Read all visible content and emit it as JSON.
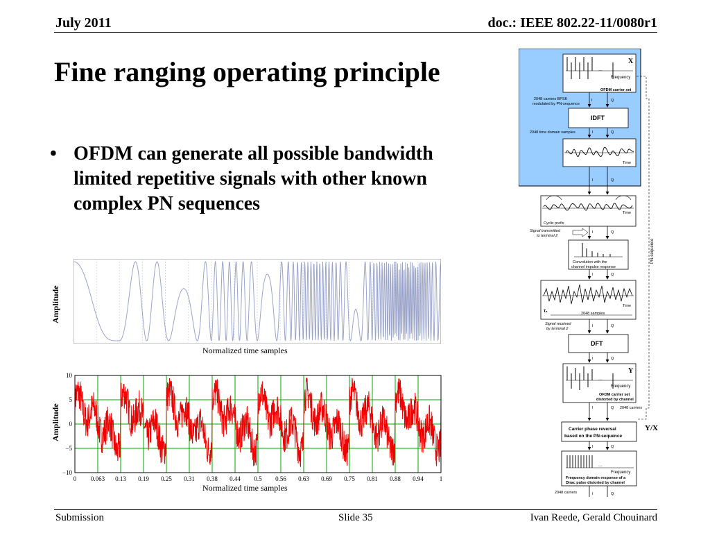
{
  "header": {
    "date": "July 2011",
    "doc": "doc.: IEEE 802.22-11/0080r1"
  },
  "title": "Fine ranging operating principle",
  "bullet": {
    "symbol": "•",
    "text": "OFDM can generate all possible bandwidth limited repetitive signals with other known complex PN sequences"
  },
  "plot1": {
    "ylabel": "Amplitude",
    "xlabel": "Normalized time samples"
  },
  "chart_data": {
    "type": "line",
    "title": "",
    "xlabel": "Normalized time samples",
    "ylabel": "Amplitude",
    "xlim": [
      0,
      1
    ],
    "ylim": [
      -10,
      10
    ],
    "x_ticks": [
      "0",
      "0.063",
      "0.13",
      "0.19",
      "0.25",
      "0.31",
      "0.38",
      "0.44",
      "0.5",
      "0.56",
      "0.63",
      "0.69",
      "0.75",
      "0.81",
      "0.88",
      "0.94",
      "1"
    ],
    "y_ticks": [
      "10",
      "5",
      "0",
      "−5",
      "−10"
    ],
    "grid": true,
    "series_color": "#ee0000",
    "grid_color": "#00aa00"
  },
  "diagram": {
    "x_label": "X",
    "y_label": "Y",
    "yx_label": "Y/X",
    "dots": "...",
    "frequency": "Frequency",
    "time": "Time",
    "i": "I",
    "q": "Q",
    "ofdm_set": "OFDM carrier set",
    "bpsk_1": "2048 carriers BPSK",
    "bpsk_2": "modulated by PN-sequence",
    "idft": "IDFT",
    "time_domain": "2048 time domain  samples",
    "cyclic_prefix": "Cyclic prefix",
    "transmitted_1": "Signal transmitted",
    "transmitted_2": "to terminal 2",
    "convolution_1": "Convolution with the",
    "convolution_2": "channel impulse response",
    "tau": "τ₁",
    "samples_2048": "2048 samples",
    "received_1": "Signal received",
    "received_2": "by terminal 2",
    "dft": "DFT",
    "distorted_1": "OFDM carrier set",
    "distorted_2": "distorted by channel",
    "carriers_2048": "2048 carriers",
    "reversal_1": "Carrier phase reversal",
    "reversal_2": "based on the PN-sequence",
    "dirac_1": "Frequency domain response of a",
    "dirac_2": "Dirac pulse distorted by channel",
    "pn_sequence": "PN-sequence",
    "highlight_color": "#99ccff"
  },
  "footer": {
    "left": "Submission",
    "center": "Slide 35",
    "right": "Ivan Reede, Gerald Chouinard"
  }
}
